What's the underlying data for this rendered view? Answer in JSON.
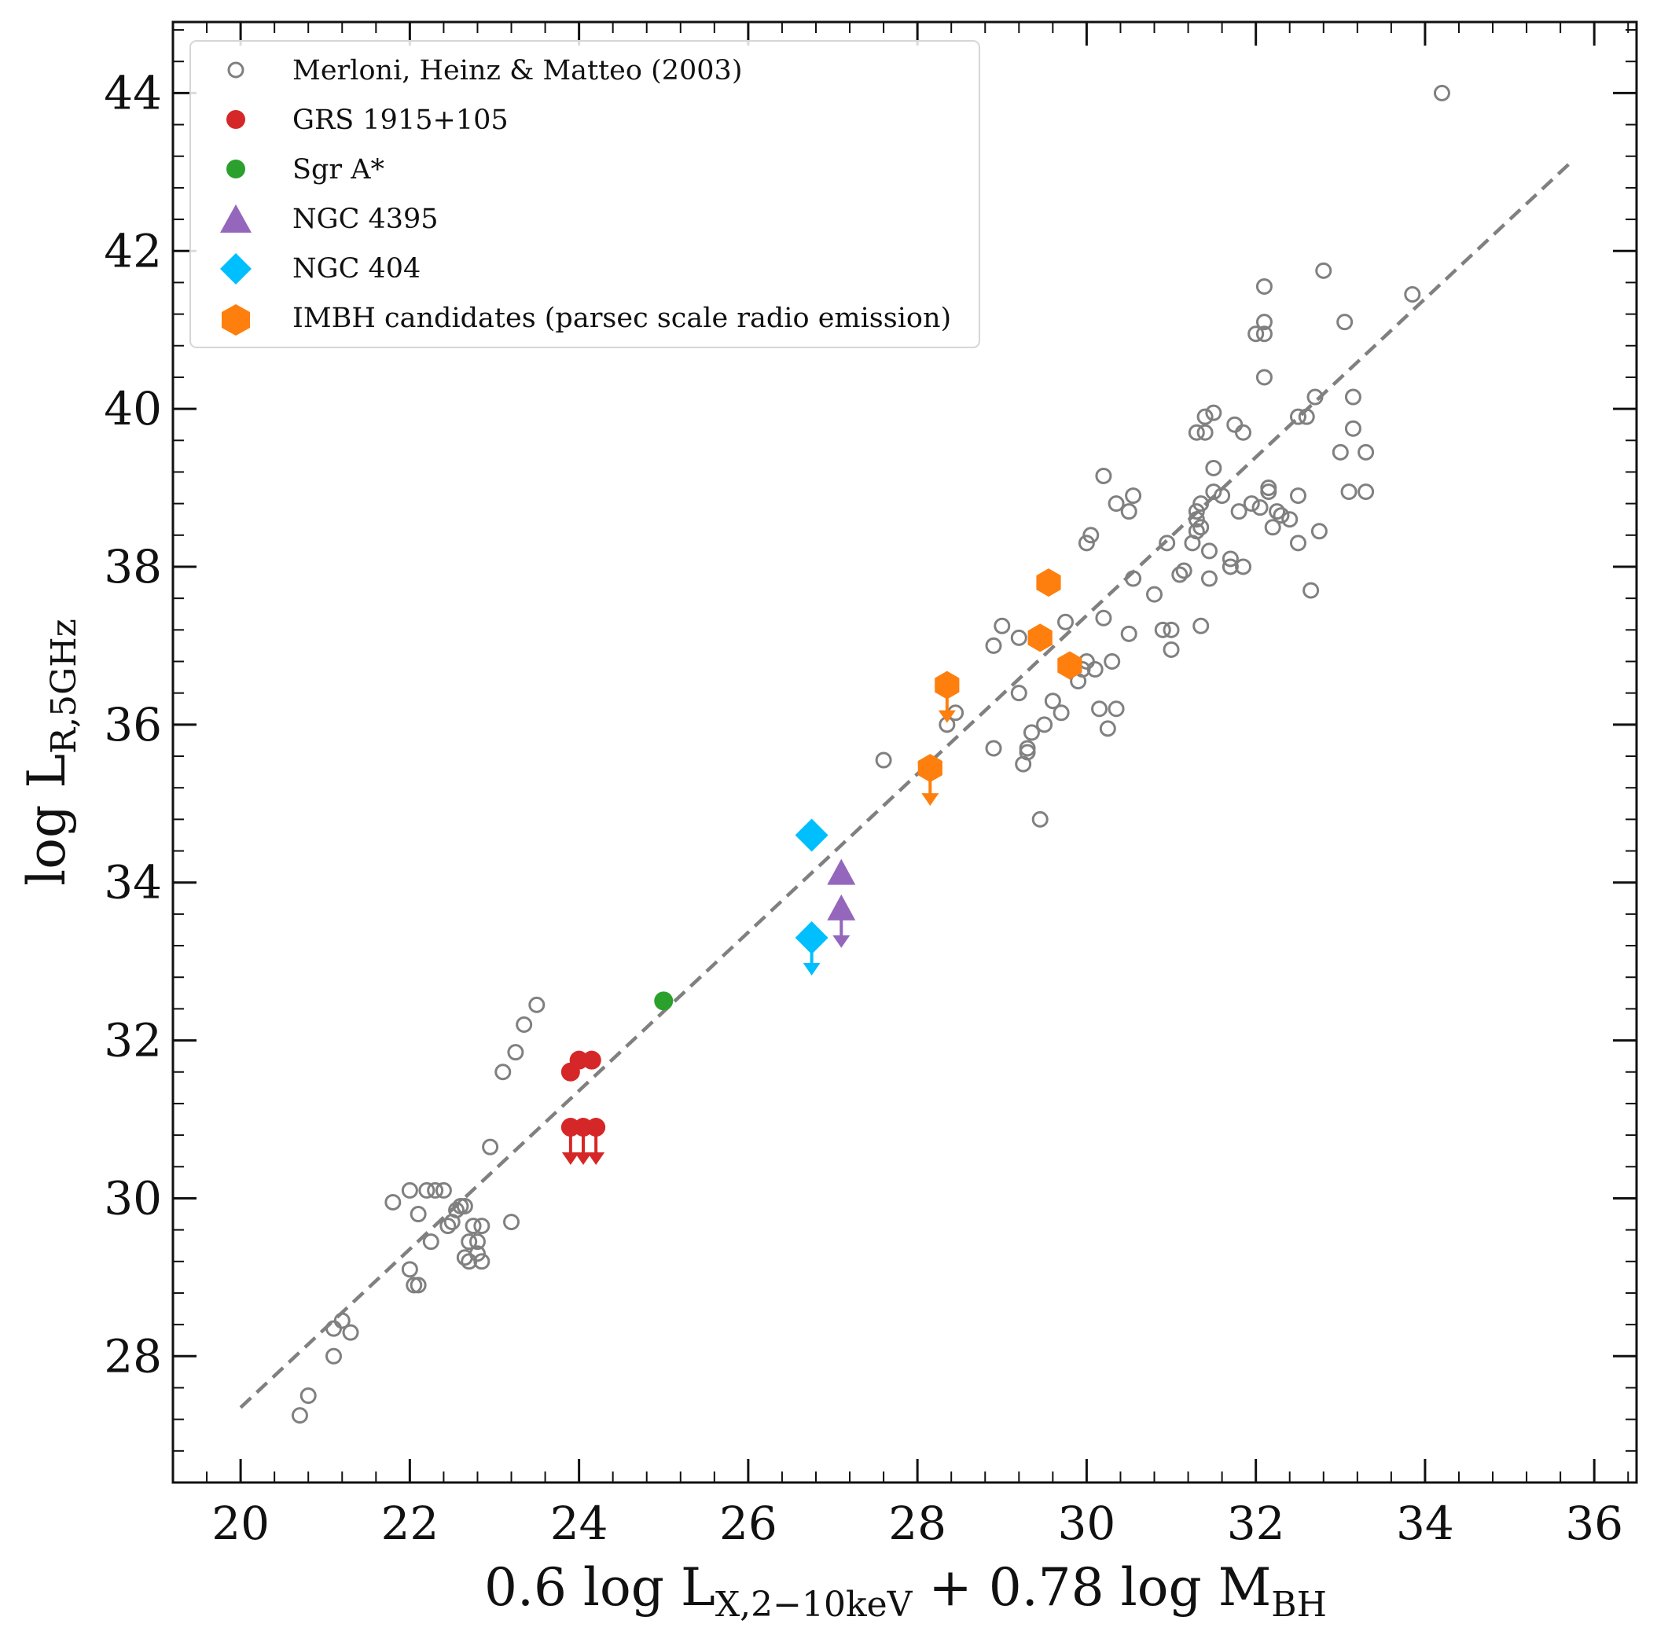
{
  "chart_data": {
    "type": "scatter",
    "xlabel": {
      "main": "0.6 log L",
      "sub": "X,2−10keV",
      "mid": " + 0.78 log M",
      "sub2": "BH"
    },
    "ylabel": {
      "main": "log L",
      "sub": "R,5GHz"
    },
    "xlim": [
      19.2,
      36.5
    ],
    "ylim": [
      26.4,
      44.9
    ],
    "xticks": [
      20,
      22,
      24,
      26,
      28,
      30,
      32,
      34,
      36
    ],
    "yticks": [
      28,
      30,
      32,
      34,
      36,
      38,
      40,
      42,
      44
    ],
    "x_minor_step": 0.4,
    "y_minor_step": 0.4,
    "fit_line": {
      "x": [
        20.0,
        35.7
      ],
      "y": [
        27.35,
        43.1
      ],
      "color": "#808080",
      "style": "dashed"
    },
    "legend": {
      "position": "upper-left"
    },
    "series": [
      {
        "name": "Merloni, Heinz & Matteo (2003)",
        "marker": "open-circle",
        "color": "#808080",
        "points": [
          [
            20.7,
            27.25
          ],
          [
            20.8,
            27.5
          ],
          [
            21.1,
            28.0
          ],
          [
            21.1,
            28.35
          ],
          [
            21.2,
            28.45
          ],
          [
            21.3,
            28.3
          ],
          [
            21.8,
            29.95
          ],
          [
            22.0,
            29.1
          ],
          [
            22.05,
            28.9
          ],
          [
            22.1,
            28.9
          ],
          [
            22.0,
            30.1
          ],
          [
            22.1,
            29.8
          ],
          [
            22.2,
            30.1
          ],
          [
            22.3,
            30.1
          ],
          [
            22.25,
            29.45
          ],
          [
            22.4,
            30.1
          ],
          [
            22.45,
            29.65
          ],
          [
            22.5,
            29.7
          ],
          [
            22.55,
            29.85
          ],
          [
            22.6,
            29.9
          ],
          [
            22.65,
            29.9
          ],
          [
            22.65,
            29.25
          ],
          [
            22.7,
            29.2
          ],
          [
            22.7,
            29.45
          ],
          [
            22.75,
            29.65
          ],
          [
            22.8,
            29.45
          ],
          [
            22.8,
            29.3
          ],
          [
            22.85,
            29.65
          ],
          [
            22.85,
            29.2
          ],
          [
            22.95,
            30.65
          ],
          [
            23.1,
            31.6
          ],
          [
            23.25,
            31.85
          ],
          [
            23.2,
            29.7
          ],
          [
            23.35,
            32.2
          ],
          [
            23.5,
            32.45
          ],
          [
            27.6,
            35.55
          ],
          [
            28.35,
            36.0
          ],
          [
            28.45,
            36.15
          ],
          [
            28.9,
            35.7
          ],
          [
            28.9,
            37.0
          ],
          [
            29.0,
            37.25
          ],
          [
            29.2,
            37.1
          ],
          [
            29.2,
            36.4
          ],
          [
            29.25,
            35.5
          ],
          [
            29.3,
            35.65
          ],
          [
            29.3,
            35.7
          ],
          [
            29.35,
            35.9
          ],
          [
            29.5,
            36.0
          ],
          [
            29.45,
            34.8
          ],
          [
            29.6,
            36.3
          ],
          [
            29.7,
            36.15
          ],
          [
            29.75,
            37.3
          ],
          [
            29.9,
            36.55
          ],
          [
            29.95,
            36.7
          ],
          [
            30.0,
            36.8
          ],
          [
            30.0,
            38.3
          ],
          [
            30.05,
            38.4
          ],
          [
            30.1,
            36.7
          ],
          [
            30.2,
            37.35
          ],
          [
            30.15,
            36.2
          ],
          [
            30.2,
            39.15
          ],
          [
            30.25,
            35.95
          ],
          [
            30.3,
            36.8
          ],
          [
            30.35,
            36.2
          ],
          [
            30.35,
            38.8
          ],
          [
            30.5,
            37.15
          ],
          [
            30.55,
            37.85
          ],
          [
            30.5,
            38.7
          ],
          [
            30.55,
            38.9
          ],
          [
            30.8,
            37.65
          ],
          [
            30.9,
            37.2
          ],
          [
            30.95,
            38.3
          ],
          [
            31.0,
            36.95
          ],
          [
            31.0,
            37.2
          ],
          [
            31.1,
            37.9
          ],
          [
            31.15,
            37.95
          ],
          [
            31.25,
            38.3
          ],
          [
            31.3,
            38.6
          ],
          [
            31.3,
            38.7
          ],
          [
            31.3,
            38.45
          ],
          [
            31.35,
            38.5
          ],
          [
            31.35,
            37.25
          ],
          [
            31.35,
            38.8
          ],
          [
            31.3,
            39.7
          ],
          [
            31.4,
            39.7
          ],
          [
            31.4,
            39.9
          ],
          [
            31.45,
            38.2
          ],
          [
            31.45,
            37.85
          ],
          [
            31.5,
            38.95
          ],
          [
            31.5,
            39.25
          ],
          [
            31.5,
            39.95
          ],
          [
            31.6,
            38.9
          ],
          [
            31.7,
            38.0
          ],
          [
            31.7,
            38.1
          ],
          [
            31.75,
            39.8
          ],
          [
            31.8,
            38.7
          ],
          [
            31.85,
            38.0
          ],
          [
            31.85,
            39.7
          ],
          [
            31.95,
            38.8
          ],
          [
            32.0,
            40.95
          ],
          [
            32.05,
            38.75
          ],
          [
            32.1,
            40.95
          ],
          [
            32.1,
            41.1
          ],
          [
            32.1,
            41.55
          ],
          [
            32.1,
            40.4
          ],
          [
            32.15,
            39.0
          ],
          [
            32.15,
            38.95
          ],
          [
            32.2,
            38.5
          ],
          [
            32.25,
            38.7
          ],
          [
            32.3,
            38.65
          ],
          [
            32.4,
            38.6
          ],
          [
            32.5,
            38.3
          ],
          [
            32.5,
            39.9
          ],
          [
            32.5,
            38.9
          ],
          [
            32.6,
            39.9
          ],
          [
            32.65,
            37.7
          ],
          [
            32.7,
            40.15
          ],
          [
            32.75,
            38.45
          ],
          [
            32.8,
            41.75
          ],
          [
            33.0,
            39.45
          ],
          [
            33.05,
            41.1
          ],
          [
            33.1,
            38.95
          ],
          [
            33.15,
            39.75
          ],
          [
            33.15,
            40.15
          ],
          [
            33.3,
            38.95
          ],
          [
            33.3,
            39.45
          ],
          [
            33.85,
            41.45
          ],
          [
            34.2,
            44.0
          ]
        ]
      },
      {
        "name": "GRS 1915+105",
        "marker": "filled-circle",
        "color": "#d62728",
        "points": [
          [
            23.9,
            31.6
          ],
          [
            24.0,
            31.75
          ],
          [
            24.15,
            31.75
          ]
        ],
        "upper_limits": [
          [
            23.9,
            30.9
          ],
          [
            24.05,
            30.9
          ],
          [
            24.2,
            30.9
          ]
        ]
      },
      {
        "name": "Sgr A*",
        "marker": "filled-circle",
        "color": "#2ca02c",
        "points": [
          [
            25.0,
            32.5
          ]
        ],
        "upper_limits": []
      },
      {
        "name": "NGC 4395",
        "marker": "triangle",
        "color": "#9467bd",
        "points": [
          [
            27.1,
            34.1
          ]
        ],
        "upper_limits": [
          [
            27.1,
            33.65
          ]
        ]
      },
      {
        "name": "NGC 404",
        "marker": "diamond",
        "color": "#00bfff",
        "points": [
          [
            26.75,
            34.6
          ]
        ],
        "upper_limits": [
          [
            26.75,
            33.3
          ]
        ]
      },
      {
        "name": "IMBH candidates (parsec scale radio emission)",
        "marker": "hexagon",
        "color": "#ff7f0e",
        "points": [
          [
            29.55,
            37.8
          ],
          [
            29.45,
            37.1
          ],
          [
            29.8,
            36.75
          ]
        ],
        "upper_limits": [
          [
            28.35,
            36.5
          ],
          [
            28.15,
            35.45
          ]
        ]
      }
    ]
  }
}
